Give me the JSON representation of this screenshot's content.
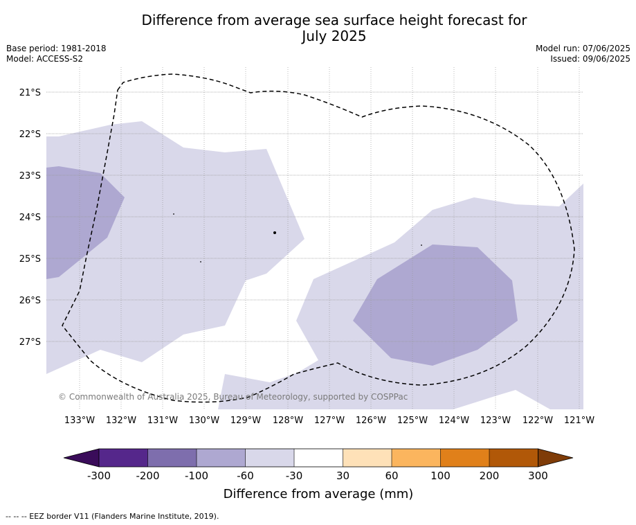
{
  "title": "Difference from average sea surface height forecast for\nJuly 2025",
  "info_left": "Base period: 1981-2018\nModel: ACCESS-S2",
  "info_right": "Model run: 07/06/2025\nIssued: 09/06/2025",
  "copyright": "© Commonwealth of Australia 2025, Bureau of Meteorology, supported by COSPPac",
  "footnote": "-- -- -- EEZ border V11 (Flanders Marine Institute, 2019).",
  "map": {
    "lon_labels": [
      "133°W",
      "132°W",
      "131°W",
      "130°W",
      "129°W",
      "128°W",
      "127°W",
      "126°W",
      "125°W",
      "124°W",
      "123°W",
      "122°W",
      "121°W"
    ],
    "lat_labels": [
      "21°S",
      "22°S",
      "23°S",
      "24°S",
      "25°S",
      "26°S",
      "27°S"
    ],
    "gridlines": true,
    "eez_border_style": "dashed black"
  },
  "colorbar": {
    "title": "Difference from average (mm)",
    "tick_labels": [
      "-300",
      "-200",
      "-100",
      "-60",
      "-30",
      "30",
      "60",
      "100",
      "200",
      "300"
    ],
    "colors": [
      "#3a0c5a",
      "#55278b",
      "#7e6ead",
      "#aea8d1",
      "#d9d8ea",
      "#ffffff",
      "#fee1b8",
      "#fbb55e",
      "#e0801a",
      "#b15808",
      "#7f3c08"
    ]
  }
}
